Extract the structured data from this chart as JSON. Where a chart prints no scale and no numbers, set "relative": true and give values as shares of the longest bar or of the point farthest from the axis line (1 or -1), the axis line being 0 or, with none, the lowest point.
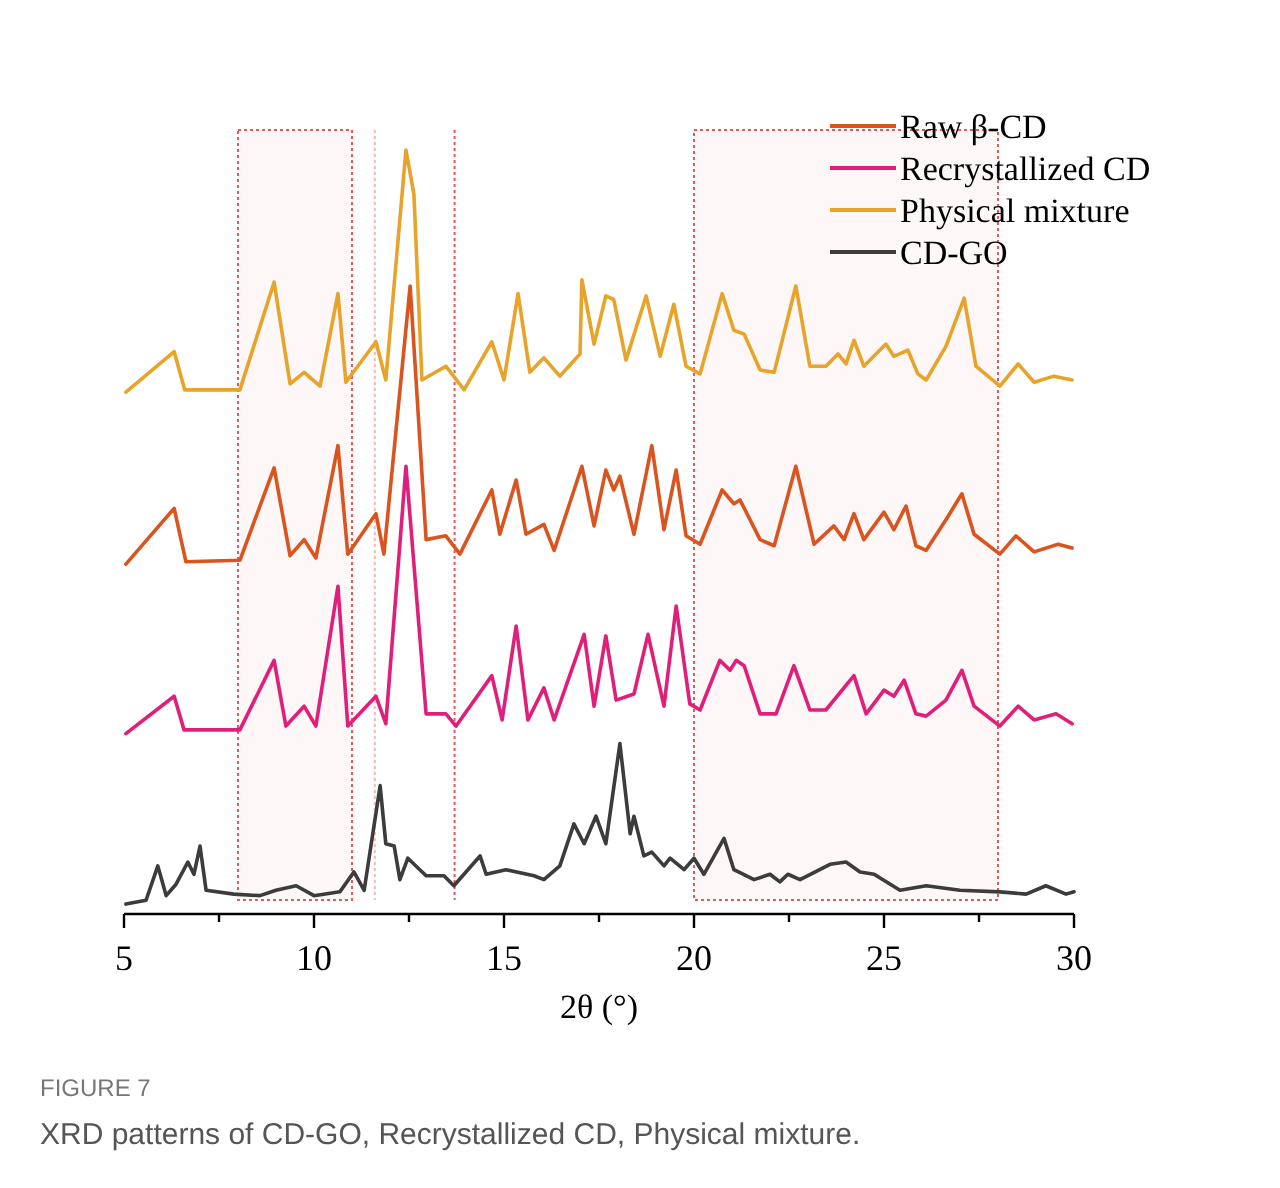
{
  "chart_data": {
    "type": "line",
    "xlabel": "2θ (°)",
    "relative": true,
    "xlim": [
      5,
      30
    ],
    "xticks": [
      5,
      {
        "value": 7.5,
        "label": null
      },
      10,
      {
        "value": 12.5,
        "label": null
      },
      15,
      {
        "value": 17.5,
        "label": null
      },
      20,
      {
        "value": 22.5,
        "label": null
      },
      25,
      {
        "value": 27.5,
        "label": null
      },
      30
    ],
    "legend": "top right",
    "grid": false,
    "line_style": "solid",
    "annotations": [
      "FIGURE 7",
      "XRD patterns of CD-GO, Recrystallized CD, Physical mixture."
    ],
    "bands": [
      {
        "axis": "x",
        "from": 8,
        "to": 11,
        "color": "#e05a5a"
      },
      {
        "axis": "x",
        "from": 20,
        "to": 28,
        "color": "#e05a5a"
      }
    ],
    "ref_lines": [
      {
        "axis": "x",
        "value": 11.6,
        "color": "#f2b8b8",
        "line_style": "dotted"
      },
      {
        "axis": "x",
        "value": 13.7,
        "color": "#e05a5a",
        "line_style": "dotted"
      }
    ],
    "series": [
      {
        "name": "Raw β-CD",
        "color": "#d9541e",
        "x": [
          5.05,
          6.32,
          6.63,
          8.05,
          8.95,
          9.37,
          9.74,
          10.05,
          10.63,
          10.89,
          11.63,
          11.84,
          12.53,
          12.95,
          13.47,
          13.84,
          14.68,
          14.89,
          15.32,
          15.58,
          16.05,
          16.32,
          17.05,
          17.37,
          17.68,
          17.89,
          18.05,
          18.42,
          18.89,
          19.21,
          19.53,
          19.79,
          20.16,
          20.74,
          21.05,
          21.21,
          21.74,
          22.11,
          22.68,
          23.16,
          23.68,
          23.95,
          24.21,
          24.47,
          25.0,
          25.26,
          25.58,
          25.84,
          26.11,
          26.63,
          27.05,
          27.37,
          28.05,
          28.47,
          28.95,
          29.58,
          29.95
        ],
        "values": [
          0.458,
          0.531,
          0.461,
          0.463,
          0.584,
          0.469,
          0.49,
          0.466,
          0.613,
          0.471,
          0.524,
          0.471,
          0.822,
          0.49,
          0.495,
          0.471,
          0.555,
          0.497,
          0.568,
          0.497,
          0.51,
          0.476,
          0.586,
          0.508,
          0.581,
          0.555,
          0.573,
          0.497,
          0.613,
          0.503,
          0.581,
          0.495,
          0.484,
          0.555,
          0.537,
          0.542,
          0.49,
          0.482,
          0.586,
          0.484,
          0.508,
          0.49,
          0.524,
          0.49,
          0.526,
          0.503,
          0.534,
          0.482,
          0.476,
          0.516,
          0.55,
          0.497,
          0.471,
          0.495,
          0.474,
          0.484,
          0.479
        ]
      },
      {
        "name": "Recrystallized CD",
        "color": "#e01f7a",
        "x": [
          5.05,
          6.32,
          6.58,
          8.05,
          8.95,
          9.26,
          9.74,
          10.05,
          10.63,
          10.89,
          11.63,
          11.89,
          12.42,
          12.95,
          13.47,
          13.74,
          14.68,
          14.95,
          15.32,
          15.63,
          16.05,
          16.32,
          17.11,
          17.37,
          17.68,
          17.95,
          18.42,
          18.79,
          19.21,
          19.53,
          19.89,
          20.16,
          20.68,
          20.95,
          21.11,
          21.32,
          21.74,
          22.16,
          22.63,
          23.05,
          23.47,
          24.21,
          24.53,
          25.0,
          25.26,
          25.53,
          25.84,
          26.11,
          26.63,
          27.05,
          27.37,
          28.05,
          28.53,
          28.95,
          29.53,
          29.95
        ],
        "values": [
          0.236,
          0.285,
          0.241,
          0.241,
          0.332,
          0.246,
          0.272,
          0.246,
          0.429,
          0.246,
          0.285,
          0.249,
          0.586,
          0.262,
          0.262,
          0.246,
          0.312,
          0.254,
          0.377,
          0.254,
          0.296,
          0.254,
          0.366,
          0.272,
          0.364,
          0.28,
          0.288,
          0.366,
          0.272,
          0.403,
          0.275,
          0.267,
          0.332,
          0.319,
          0.332,
          0.325,
          0.262,
          0.262,
          0.325,
          0.267,
          0.267,
          0.312,
          0.262,
          0.293,
          0.285,
          0.306,
          0.262,
          0.259,
          0.28,
          0.319,
          0.272,
          0.246,
          0.272,
          0.254,
          0.262,
          0.249
        ]
      },
      {
        "name": "Physical mixture",
        "color": "#e8a32a",
        "x": [
          5.05,
          6.32,
          6.6,
          8.05,
          8.95,
          9.37,
          9.74,
          10.16,
          10.63,
          10.84,
          11.63,
          11.89,
          12.42,
          12.63,
          12.84,
          13.47,
          13.95,
          14.68,
          15.0,
          15.37,
          15.68,
          16.05,
          16.47,
          17.0,
          17.05,
          17.37,
          17.68,
          17.89,
          18.21,
          18.74,
          19.11,
          19.47,
          19.79,
          20.16,
          20.74,
          21.05,
          21.32,
          21.74,
          22.11,
          22.68,
          23.05,
          23.47,
          23.79,
          24.0,
          24.21,
          24.47,
          25.05,
          25.26,
          25.63,
          25.89,
          26.11,
          26.63,
          27.11,
          27.42,
          28.05,
          28.53,
          28.95,
          29.47,
          29.95
        ],
        "values": [
          0.683,
          0.736,
          0.686,
          0.686,
          0.827,
          0.694,
          0.709,
          0.691,
          0.812,
          0.696,
          0.749,
          0.699,
          1.0,
          0.942,
          0.699,
          0.717,
          0.686,
          0.749,
          0.699,
          0.812,
          0.709,
          0.728,
          0.704,
          0.733,
          0.83,
          0.746,
          0.809,
          0.804,
          0.725,
          0.809,
          0.73,
          0.798,
          0.717,
          0.707,
          0.812,
          0.764,
          0.759,
          0.712,
          0.709,
          0.822,
          0.717,
          0.717,
          0.733,
          0.72,
          0.751,
          0.717,
          0.746,
          0.73,
          0.738,
          0.707,
          0.699,
          0.743,
          0.806,
          0.717,
          0.691,
          0.72,
          0.696,
          0.704,
          0.699
        ]
      },
      {
        "name": "CD-GO",
        "color": "#3c3c3c",
        "x": [
          5.05,
          5.58,
          5.89,
          6.11,
          6.37,
          6.68,
          6.84,
          7.0,
          7.16,
          7.89,
          8.58,
          9.0,
          9.53,
          10.0,
          10.68,
          11.05,
          11.32,
          11.74,
          11.89,
          12.11,
          12.26,
          12.47,
          12.95,
          13.42,
          13.68,
          14.37,
          14.53,
          15.05,
          15.79,
          16.05,
          16.47,
          16.84,
          17.11,
          17.42,
          17.68,
          18.05,
          18.32,
          18.42,
          18.68,
          18.89,
          19.21,
          19.37,
          19.74,
          20.0,
          20.26,
          20.79,
          21.05,
          21.58,
          22.0,
          22.26,
          22.47,
          22.79,
          23.58,
          24.0,
          24.37,
          24.74,
          25.42,
          26.11,
          27.0,
          28.05,
          28.74,
          29.26,
          29.79,
          30.0
        ],
        "values": [
          0.013,
          0.018,
          0.063,
          0.024,
          0.039,
          0.068,
          0.052,
          0.089,
          0.031,
          0.026,
          0.024,
          0.031,
          0.037,
          0.024,
          0.029,
          0.055,
          0.031,
          0.168,
          0.092,
          0.089,
          0.045,
          0.073,
          0.05,
          0.05,
          0.037,
          0.076,
          0.052,
          0.058,
          0.05,
          0.045,
          0.063,
          0.118,
          0.092,
          0.128,
          0.092,
          0.223,
          0.105,
          0.128,
          0.076,
          0.081,
          0.063,
          0.073,
          0.058,
          0.073,
          0.052,
          0.099,
          0.058,
          0.045,
          0.052,
          0.042,
          0.052,
          0.045,
          0.065,
          0.068,
          0.055,
          0.052,
          0.031,
          0.037,
          0.031,
          0.029,
          0.026,
          0.037,
          0.026,
          0.029
        ]
      }
    ]
  }
}
